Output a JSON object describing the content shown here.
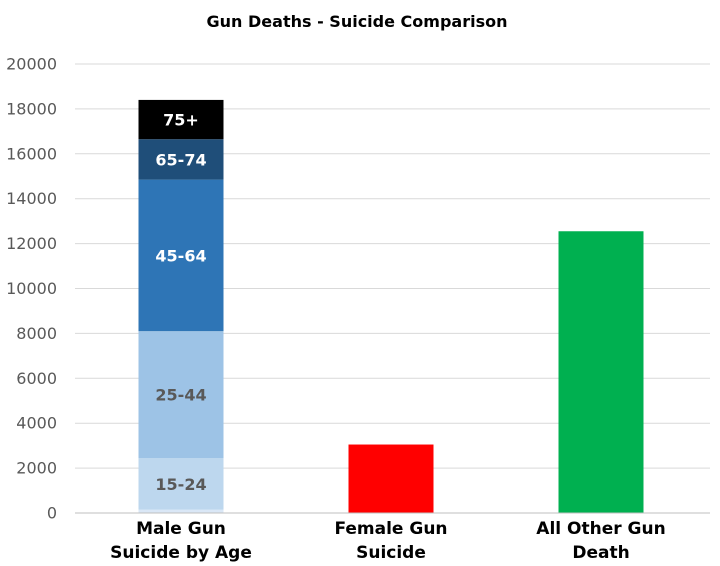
{
  "chart_data": {
    "type": "bar",
    "title": "Gun Deaths - Suicide Comparison",
    "xlabel": "",
    "ylabel": "",
    "ylim": [
      0,
      20000
    ],
    "yticks": [
      0,
      2000,
      4000,
      6000,
      8000,
      10000,
      12000,
      14000,
      16000,
      18000,
      20000
    ],
    "grid": true,
    "categories": [
      {
        "label_lines": [
          "Male Gun",
          "Suicide by Age"
        ]
      },
      {
        "label_lines": [
          "Female Gun",
          "Suicide"
        ]
      },
      {
        "label_lines": [
          "All Other Gun",
          "Death"
        ]
      }
    ],
    "series": [
      {
        "label": "",
        "category": 0,
        "value": 150,
        "color": "#dae7f6",
        "label_color": "#ffffff"
      },
      {
        "label": "15-24",
        "category": 0,
        "value": 2300,
        "color": "#bdd7ee",
        "label_color": "#595959"
      },
      {
        "label": "25-44",
        "category": 0,
        "value": 5650,
        "color": "#9dc3e6",
        "label_color": "#595959"
      },
      {
        "label": "45-64",
        "category": 0,
        "value": 6750,
        "color": "#2e75b6",
        "label_color": "#ffffff"
      },
      {
        "label": "65-74",
        "category": 0,
        "value": 1800,
        "color": "#1f4e79",
        "label_color": "#ffffff"
      },
      {
        "label": "75+",
        "category": 0,
        "value": 1750,
        "color": "#000000",
        "label_color": "#ffffff"
      },
      {
        "label": "",
        "category": 1,
        "value": 3050,
        "color": "#ff0000",
        "label_color": "#ffffff"
      },
      {
        "label": "",
        "category": 2,
        "value": 12550,
        "color": "#00b050",
        "label_color": "#ffffff"
      }
    ]
  }
}
